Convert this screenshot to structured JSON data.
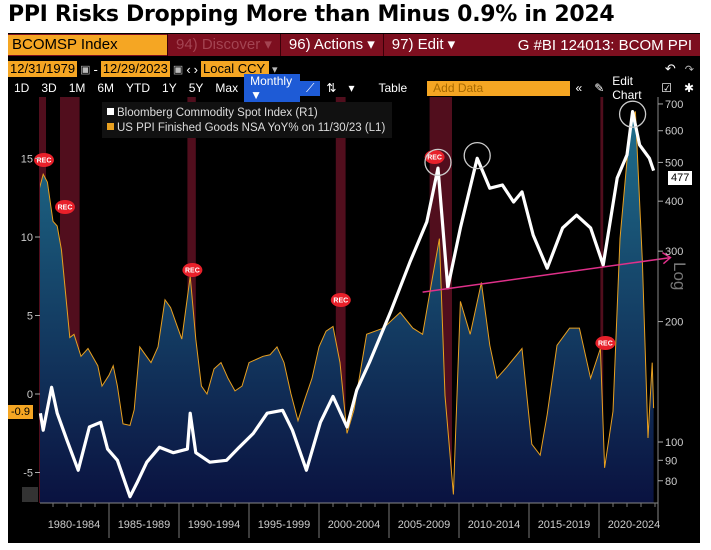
{
  "title": "PPI Risks Dropping More than Minus 0.9% in 2024",
  "toolbar": {
    "security": "BCOMSP Index",
    "discover": "94) Discover ▾",
    "actions": "96) Actions ▾",
    "edit": "97) Edit ▾",
    "chart_id": "G #BI 124013: BCOM PPI",
    "start_date": "12/31/1979",
    "end_date": "12/29/2023",
    "currency": "Local CCY",
    "periods": [
      "1D",
      "3D",
      "1M",
      "6M",
      "YTD",
      "1Y",
      "5Y",
      "Max"
    ],
    "frequency": "Monthly ▼",
    "table": "Table",
    "add_data_placeholder": "Add Data",
    "edit_chart": "Edit Chart",
    "icons": [
      "calendar-icon",
      "prev-icon",
      "next-icon",
      "line-chart-icon",
      "bar-type-icon",
      "undo-icon",
      "redo-icon",
      "collapse-icon",
      "pencil-icon",
      "annotate-icon",
      "gear-icon"
    ]
  },
  "chart_data": {
    "type": "line",
    "legend": [
      "Bloomberg Commodity Spot Index (R1)",
      "US PPI Finished Goods NSA YoY% on 11/30/23 (L1)"
    ],
    "legend_placement": "top-left",
    "xlim": [
      1980,
      2024.2
    ],
    "x_tick_labels": [
      "1980-1984",
      "1985-1989",
      "1990-1994",
      "1995-1999",
      "2000-2004",
      "2005-2009",
      "2010-2014",
      "2015-2019",
      "2020-2024"
    ],
    "left_axis": {
      "ticks": [
        15,
        10,
        5,
        0,
        -5
      ],
      "ylim": [
        -7.6,
        18.7
      ],
      "last_value_label": "-0.9"
    },
    "right_axis": {
      "scale": "log",
      "label": "Log",
      "ticks": [
        700,
        600,
        500,
        400,
        300,
        200,
        100,
        90,
        80
      ],
      "ylim": [
        72,
        770
      ],
      "last_value_label": "477"
    },
    "colors": {
      "bcom": "#ffffff",
      "ppi": "#e8a020",
      "area_top": "#1f6f8c",
      "area_bottom": "#0a1240",
      "recession": "#5a1020",
      "arrow": "#e0308a",
      "circle": "#cccccc",
      "rec_marker": "#e8202a"
    },
    "series": [
      {
        "name": "Bloomberg Commodity Spot Index (R1)",
        "axis": "right",
        "x": [
          1980.1,
          1980.3,
          1980.9,
          1981.3,
          1982.0,
          1982.8,
          1983.6,
          1984.4,
          1984.9,
          1985.6,
          1986.5,
          1987.0,
          1987.7,
          1988.6,
          1989.6,
          1990.6,
          1990.8,
          1991.2,
          1992.2,
          1993.4,
          1994.3,
          1995.3,
          1996.3,
          1997.4,
          1998.1,
          1999.1,
          2000.1,
          2001.0,
          2002.0,
          2002.7,
          2003.6,
          2005.1,
          2006.5,
          2007.7,
          2008.5,
          2009.2,
          2010.1,
          2011.3,
          2012.2,
          2013.1,
          2013.9,
          2014.5,
          2015.3,
          2016.3,
          2017.4,
          2018.4,
          2019.4,
          2020.3,
          2021.3,
          2022.0,
          2022.4,
          2022.9,
          2023.6,
          2023.9
        ],
        "y": [
          118,
          107,
          137,
          118,
          101,
          85,
          109,
          112,
          96,
          90,
          73,
          79,
          89,
          97,
          94,
          96,
          118,
          94,
          89,
          90,
          97,
          105,
          118,
          120,
          107,
          85,
          112,
          130,
          109,
          135,
          158,
          211,
          282,
          355,
          484,
          243,
          343,
          512,
          431,
          439,
          398,
          422,
          329,
          272,
          343,
          369,
          343,
          277,
          457,
          522,
          670,
          553,
          512,
          477
        ]
      },
      {
        "name": "US PPI Finished Goods NSA YoY% on 11/30/23 (L1)",
        "axis": "left",
        "x": [
          1980.0,
          1980.3,
          1980.6,
          1981.0,
          1981.3,
          1981.6,
          1982.2,
          1982.5,
          1983.0,
          1983.5,
          1984.2,
          1984.5,
          1985.0,
          1985.3,
          1985.6,
          1986.0,
          1986.5,
          1986.8,
          1987.2,
          1987.6,
          1988.0,
          1988.5,
          1989.0,
          1989.4,
          1989.8,
          1990.2,
          1990.8,
          1991.2,
          1991.6,
          1992.0,
          1992.5,
          1993.0,
          1993.5,
          1994.0,
          1994.5,
          1995.0,
          1995.5,
          1996.0,
          1996.5,
          1997.0,
          1997.5,
          1998.0,
          1998.5,
          1999.0,
          1999.5,
          2000.0,
          2000.5,
          2001.0,
          2001.5,
          2002.0,
          2002.5,
          2003.4,
          2004.6,
          2005.8,
          2006.7,
          2007.4,
          2008.1,
          2008.6,
          2009.0,
          2009.6,
          2010.1,
          2010.8,
          2011.6,
          2012.2,
          2012.7,
          2013.4,
          2014.5,
          2015.2,
          2015.8,
          2016.3,
          2017.0,
          2017.9,
          2018.6,
          2019.4,
          2020.1,
          2020.4,
          2021.0,
          2021.5,
          2022.2,
          2022.6,
          2023.1,
          2023.5,
          2023.8,
          2023.9
        ],
        "y": [
          13,
          14,
          13.5,
          11,
          10.7,
          9.2,
          3.6,
          3.8,
          2.4,
          2.9,
          1.8,
          0.5,
          1.2,
          1.8,
          0.5,
          -1.9,
          -2,
          -1,
          3,
          2.5,
          2,
          3,
          6,
          5.5,
          4.5,
          3.5,
          7.5,
          3.5,
          0.5,
          0,
          1.6,
          2,
          1,
          0.2,
          0.5,
          2,
          2.2,
          2.4,
          2.5,
          3,
          2,
          0,
          -1.7,
          -0.3,
          1,
          3,
          4,
          4.3,
          2,
          -2.5,
          -1,
          3.8,
          4.2,
          5.2,
          4.2,
          3.8,
          7.4,
          9.9,
          -0.1,
          -6.4,
          5.9,
          3.8,
          7.1,
          3.1,
          1,
          1.7,
          2.9,
          -3.2,
          -3.9,
          -1.3,
          3.1,
          4.2,
          4.2,
          1,
          2.9,
          -4.7,
          -1.1,
          9.9,
          16.9,
          18,
          8.4,
          -2.8,
          2,
          -0.9
        ]
      }
    ],
    "recessions": [
      [
        1980.0,
        1980.5
      ],
      [
        1981.5,
        1982.9
      ],
      [
        1990.6,
        1991.2
      ],
      [
        2001.2,
        2001.9
      ],
      [
        2007.9,
        2009.5
      ],
      [
        2020.1,
        2020.3
      ]
    ],
    "rec_marker_label": "REC",
    "annotations": {
      "circles": [
        {
          "x": 2008.5,
          "y": 500
        },
        {
          "x": 2011.3,
          "y": 520
        },
        {
          "x": 2022.4,
          "y": 660
        }
      ],
      "arrow": {
        "from": {
          "x": 2007.4,
          "y": 237
        },
        "to": {
          "x": 2025.1,
          "y": 289
        }
      }
    }
  }
}
